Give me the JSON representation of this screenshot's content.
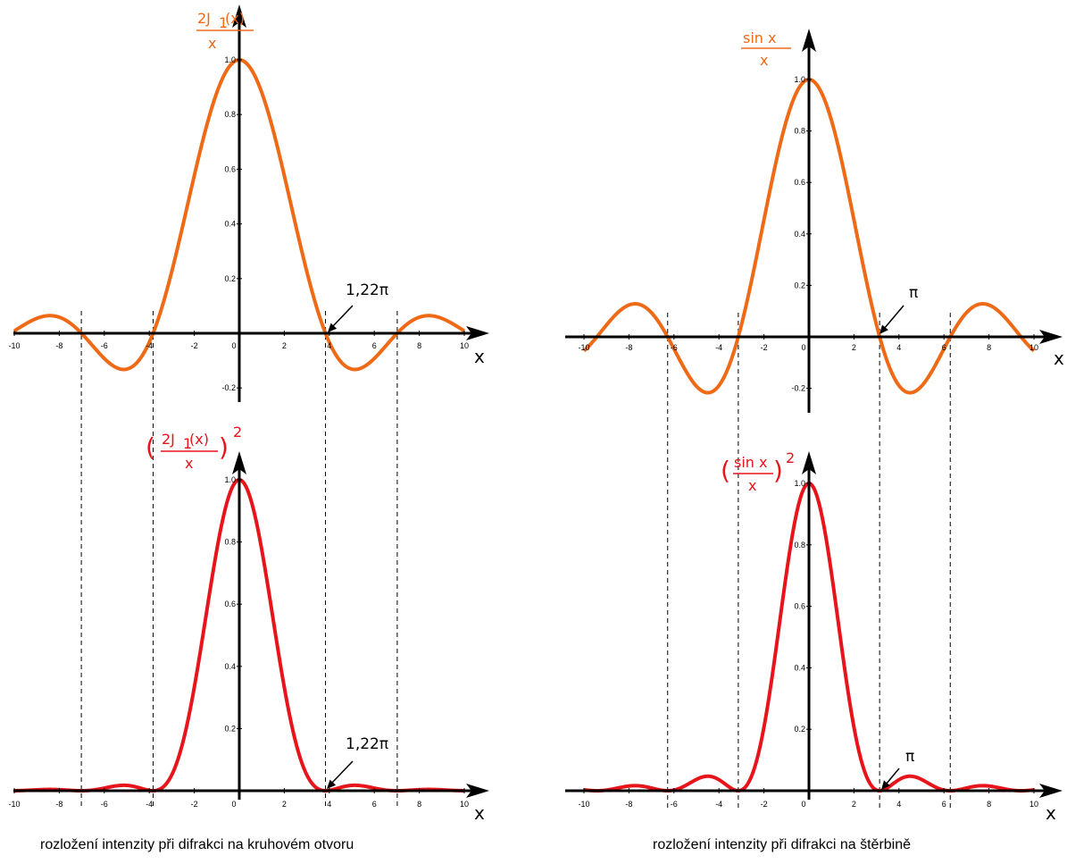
{
  "colors": {
    "amplitude": "#ef6a17",
    "intensity": "#e8141b",
    "axis": "#000000",
    "guide": "#000000"
  },
  "chart_data": [
    {
      "id": "circle-amplitude",
      "type": "line",
      "function": "2*J1(x)/x",
      "title": "",
      "func_label": {
        "prefix": "2J",
        "sub": "1",
        "suffix": "(x)",
        "den": "x"
      },
      "xlabel": "x",
      "xlim": [
        -10,
        10
      ],
      "ylim": [
        -0.2,
        1.0
      ],
      "xticks": [
        "-10",
        "-8",
        "-6",
        "-4",
        "-2",
        "0",
        "2",
        "4",
        "6",
        "8",
        "10"
      ],
      "yticks": [
        "0.2",
        "0.4",
        "0.6",
        "0.8",
        "1.0",
        "-0.2"
      ],
      "series": [
        {
          "x": [
            -10,
            -9,
            -8.42,
            -8,
            -7.02,
            -6,
            -5.14,
            -4,
            -3.83,
            -3,
            -2,
            -1,
            0,
            1,
            2,
            3,
            3.83,
            4,
            5.14,
            6,
            7.02,
            8,
            8.42,
            9,
            10
          ],
          "y": [
            0.087,
            0.049,
            0.065,
            0.059,
            0.0,
            -0.092,
            -0.132,
            -0.033,
            0.0,
            0.226,
            0.577,
            0.88,
            1.0,
            0.88,
            0.577,
            0.226,
            0.0,
            -0.033,
            -0.132,
            -0.092,
            0.0,
            0.059,
            0.065,
            0.049,
            0.087
          ]
        }
      ],
      "annotation": {
        "text": "1,22π",
        "x": 3.83
      }
    },
    {
      "id": "circle-intensity",
      "type": "line",
      "function": "(2*J1(x)/x)^2",
      "title": "",
      "func_label": {
        "prefix": "2J",
        "sub": "1",
        "suffix": "(x)",
        "den": "x",
        "power": "2"
      },
      "xlabel": "x",
      "xlim": [
        -10,
        10
      ],
      "ylim": [
        0,
        1.0
      ],
      "xticks": [
        "-10",
        "-8",
        "-6",
        "-4",
        "-2",
        "0",
        "2",
        "4",
        "6",
        "8",
        "10"
      ],
      "yticks": [
        "0.2",
        "0.4",
        "0.6",
        "0.8",
        "1.0"
      ],
      "series": [
        {
          "x": [
            -10,
            -8.42,
            -7.02,
            -5.14,
            -3.83,
            -3,
            -2,
            -1,
            0,
            1,
            2,
            3,
            3.83,
            5.14,
            7.02,
            8.42,
            10
          ],
          "y": [
            0.0076,
            0.0042,
            0.0,
            0.0175,
            0.0,
            0.051,
            0.333,
            0.774,
            1.0,
            0.774,
            0.333,
            0.051,
            0.0,
            0.0175,
            0.0,
            0.0042,
            0.0076
          ]
        }
      ],
      "annotation": {
        "text": "1,22π",
        "x": 3.83
      }
    },
    {
      "id": "slit-amplitude",
      "type": "line",
      "function": "sin(x)/x",
      "title": "",
      "func_label": {
        "num": "sin x",
        "den": "x"
      },
      "xlabel": "x",
      "xlim": [
        -10,
        10
      ],
      "ylim": [
        -0.2,
        1.0
      ],
      "xticks": [
        "-10",
        "-8",
        "-6",
        "-4",
        "-2",
        "0",
        "2",
        "4",
        "6",
        "8",
        "10"
      ],
      "yticks": [
        "0.2",
        "0.4",
        "0.6",
        "0.8",
        "1.0",
        "-0.2"
      ],
      "series": [
        {
          "x": [
            -10,
            -9,
            -7.73,
            -6.28,
            -4.49,
            -3.14,
            -2,
            -1,
            0,
            1,
            2,
            3.14,
            4.49,
            6.28,
            7.73,
            9,
            10
          ],
          "y": [
            -0.054,
            0.046,
            0.128,
            0.0,
            -0.217,
            0.0,
            0.455,
            0.841,
            1.0,
            0.841,
            0.455,
            0.0,
            -0.217,
            0.0,
            0.128,
            0.046,
            -0.054
          ]
        }
      ],
      "annotation": {
        "text": "π",
        "x": 3.14
      }
    },
    {
      "id": "slit-intensity",
      "type": "line",
      "function": "(sin(x)/x)^2",
      "title": "",
      "func_label": {
        "num": "sin x",
        "den": "x",
        "power": "2"
      },
      "xlabel": "x",
      "xlim": [
        -10,
        10
      ],
      "ylim": [
        0,
        1.0
      ],
      "xticks": [
        "-10",
        "-8",
        "-6",
        "-4",
        "-2",
        "0",
        "2",
        "4",
        "6",
        "8",
        "10"
      ],
      "yticks": [
        "0.2",
        "0.4",
        "0.6",
        "0.8",
        "1.0"
      ],
      "series": [
        {
          "x": [
            -10,
            -9.42,
            -7.73,
            -6.28,
            -4.49,
            -3.14,
            -2,
            -1,
            0,
            1,
            2,
            3.14,
            4.49,
            6.28,
            7.73,
            9.42,
            10
          ],
          "y": [
            0.003,
            0.0,
            0.016,
            0.0,
            0.047,
            0.0,
            0.207,
            0.708,
            1.0,
            0.708,
            0.207,
            0.0,
            0.047,
            0.0,
            0.016,
            0.0,
            0.003
          ]
        }
      ],
      "annotation": {
        "text": "π",
        "x": 3.14
      }
    }
  ],
  "captions": {
    "left": "rozložení intenzity  při difrakci na kruhovém otvoru",
    "right": "rozložení intenzity  při difrakci na štěrbině"
  }
}
